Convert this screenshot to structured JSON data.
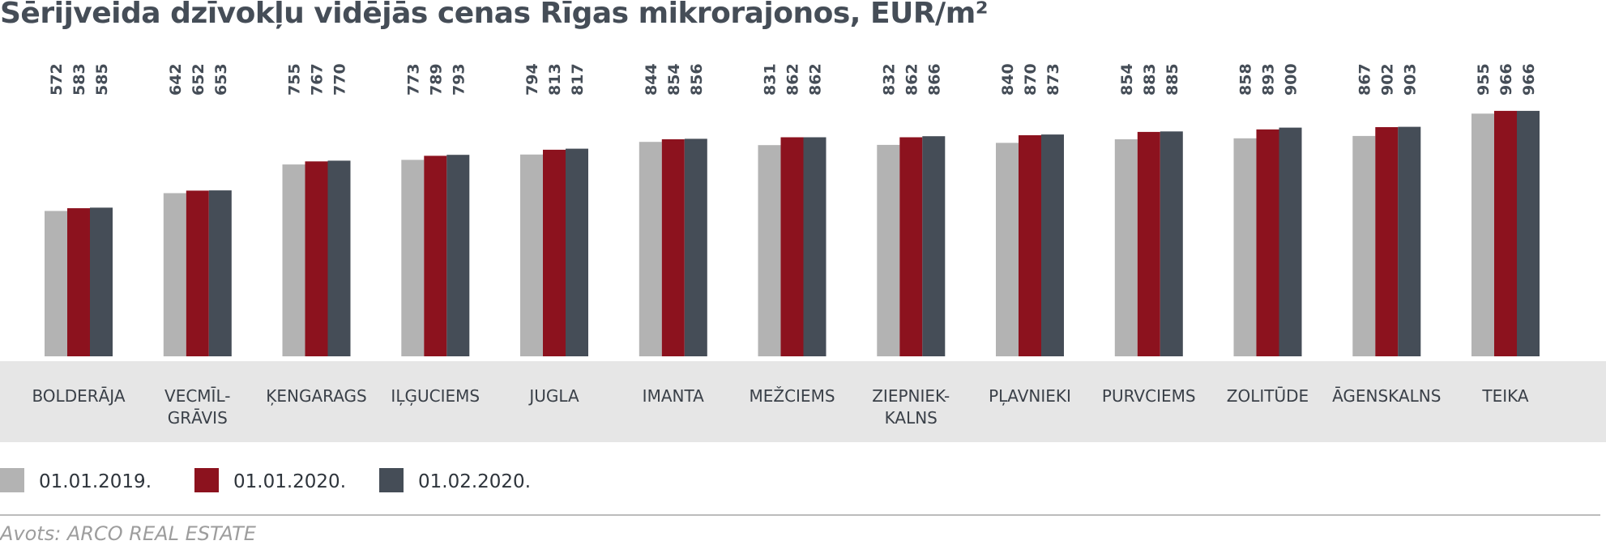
{
  "title": "Sērijveida dzīvokļu vidējās cenas Rīgas mikrorajonos, EUR/m²",
  "source": "Avots: ARCO REAL ESTATE",
  "colors": {
    "s2019": "#b3b3b3",
    "s2020a": "#8c121e",
    "s2020b": "#454d57",
    "band": "#e6e6e6"
  },
  "legend": [
    {
      "label": "01.01.2019.",
      "color": "#b3b3b3"
    },
    {
      "label": "01.01.2020.",
      "color": "#8c121e"
    },
    {
      "label": "01.02.2020.",
      "color": "#454d57"
    }
  ],
  "chart_data": {
    "type": "bar",
    "title": "Sērijveida dzīvokļu vidējās cenas Rīgas mikrorajonos, EUR/m²",
    "categories": [
      "BOLDERĀJA",
      "VECMĪL-\nGRĀVIS",
      "ĶENGARAGS",
      "IĻĢUCIEMS",
      "JUGLA",
      "IMANTA",
      "MEŽCIEMS",
      "ZIEPNIEK-\nKALNS",
      "PĻAVNIEKI",
      "PURVCIEMS",
      "ZOLITŪDE",
      "ĀGENSKALNS",
      "TEIKA"
    ],
    "series": [
      {
        "name": "01.01.2019.",
        "values": [
          572,
          642,
          755,
          773,
          794,
          844,
          831,
          832,
          840,
          854,
          858,
          867,
          955
        ]
      },
      {
        "name": "01.01.2020.",
        "values": [
          583,
          652,
          767,
          789,
          813,
          854,
          862,
          862,
          870,
          883,
          893,
          902,
          966
        ]
      },
      {
        "name": "01.02.2020.",
        "values": [
          585,
          653,
          770,
          793,
          817,
          856,
          862,
          866,
          873,
          885,
          900,
          903,
          966
        ]
      }
    ],
    "ylim": [
      0,
      1000
    ],
    "grid": false,
    "legend_position": "bottom-left",
    "data_labels": "rotated-above"
  }
}
